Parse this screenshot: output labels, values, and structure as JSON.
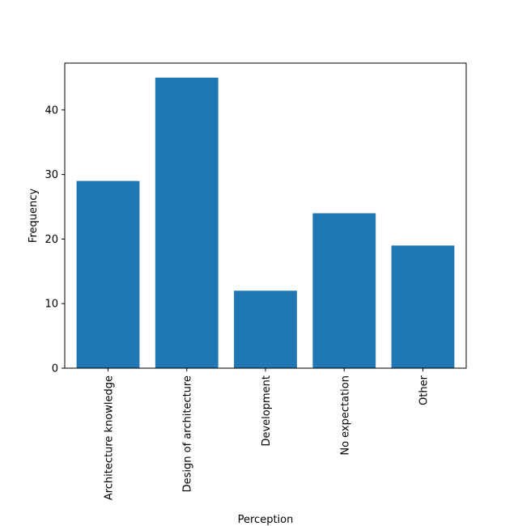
{
  "chart_data": {
    "type": "bar",
    "title": "",
    "xlabel": "Perception",
    "ylabel": "Frequency",
    "categories": [
      "Architecture knowledge",
      "Design of architecture",
      "Development",
      "No expectation",
      "Other"
    ],
    "values": [
      29,
      45,
      12,
      24,
      19
    ],
    "ylim": [
      0,
      47.25
    ],
    "yticks": [
      0,
      10,
      20,
      30,
      40
    ],
    "bar_color": "#1f77b4",
    "grid": false,
    "legend": "none"
  }
}
